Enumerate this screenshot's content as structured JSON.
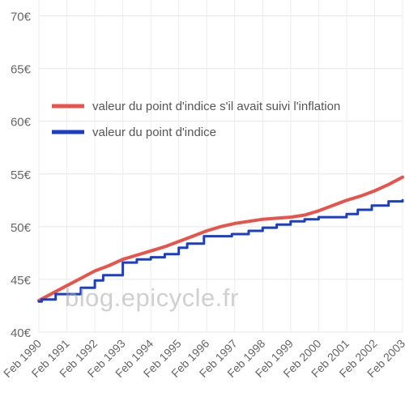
{
  "watermark": "blog.epicycle.fr",
  "chart_data": {
    "type": "line",
    "title": "",
    "xlabel": "",
    "ylabel": "",
    "ylim": [
      40,
      71.5
    ],
    "xlim": [
      1990.0,
      2003.0
    ],
    "grid": true,
    "legend_position": "top-left",
    "y_ticks": [
      40,
      45,
      50,
      55,
      60,
      65,
      70
    ],
    "y_tick_labels": [
      "40€",
      "45€",
      "50€",
      "55€",
      "60€",
      "65€",
      "70€"
    ],
    "x_tick_positions": [
      1990,
      1991,
      1992,
      1993,
      1994,
      1995,
      1996,
      1997,
      1998,
      1999,
      2000,
      2001,
      2002,
      2003
    ],
    "x_tick_labels": [
      "Feb 1990",
      "Feb 1991",
      "Feb 1992",
      "Feb 1993",
      "Feb 1994",
      "Feb 1995",
      "Feb 1996",
      "Feb 1997",
      "Feb 1998",
      "Feb 1999",
      "Feb 2000",
      "Feb 2001",
      "Feb 2002",
      "Feb 2003"
    ],
    "series": [
      {
        "name": "valeur du point d'indice s'il avait suivi l'inflation",
        "color": "#e8534b",
        "step": false,
        "x": [
          1990.0,
          1990.5,
          1991.0,
          1991.5,
          1992.0,
          1992.5,
          1993.0,
          1993.5,
          1994.0,
          1994.5,
          1995.0,
          1995.5,
          1996.0,
          1996.5,
          1997.0,
          1997.5,
          1998.0,
          1998.5,
          1999.0,
          1999.5,
          2000.0,
          2000.5,
          2001.0,
          2001.5,
          2002.0,
          2002.5,
          2003.0
        ],
        "values": [
          43.0,
          43.7,
          44.4,
          45.1,
          45.8,
          46.3,
          46.9,
          47.3,
          47.7,
          48.1,
          48.6,
          49.1,
          49.6,
          50.0,
          50.3,
          50.5,
          50.7,
          50.8,
          50.9,
          51.1,
          51.5,
          52.0,
          52.5,
          52.9,
          53.4,
          54.0,
          54.7
        ]
      },
      {
        "name": "valeur du point d'indice",
        "color": "#1a3fc4",
        "step": true,
        "x": [
          1990.0,
          1990.1,
          1990.6,
          1991.5,
          1992.0,
          1992.3,
          1993.0,
          1993.5,
          1994.0,
          1994.5,
          1995.0,
          1995.3,
          1995.9,
          1996.9,
          1997.5,
          1998.0,
          1998.5,
          1999.0,
          1999.5,
          2000.0,
          2001.0,
          2001.4,
          2001.9,
          2002.5,
          2003.0
        ],
        "values": [
          42.9,
          43.1,
          43.6,
          44.2,
          44.9,
          45.4,
          46.6,
          46.9,
          47.1,
          47.4,
          48.0,
          48.4,
          49.1,
          49.3,
          49.6,
          49.9,
          50.2,
          50.5,
          50.7,
          50.9,
          51.2,
          51.6,
          52.0,
          52.4,
          52.5
        ]
      }
    ]
  }
}
